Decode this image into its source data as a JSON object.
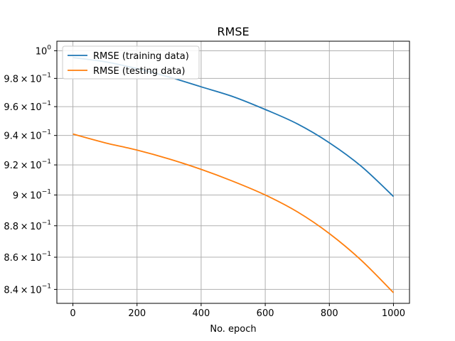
{
  "chart_data": {
    "type": "line",
    "title": "RMSE",
    "xlabel": "No. epoch",
    "ylabel": "",
    "yscale": "log",
    "grid": true,
    "legend_placement": "top-left",
    "xlim": [
      -50,
      1050
    ],
    "ylim": [
      0.8315,
      1.007
    ],
    "xticks": [
      0,
      200,
      400,
      600,
      800,
      1000
    ],
    "xtick_labels": [
      "0",
      "200",
      "400",
      "600",
      "800",
      "1000"
    ],
    "yticks": [
      {
        "value": 0.84,
        "mant": "8.4",
        "base": "10",
        "exp": "−1"
      },
      {
        "value": 0.86,
        "mant": "8.6",
        "base": "10",
        "exp": "−1"
      },
      {
        "value": 0.88,
        "mant": "8.8",
        "base": "10",
        "exp": "−1"
      },
      {
        "value": 0.9,
        "mant": "9",
        "base": "10",
        "exp": "−1"
      },
      {
        "value": 0.92,
        "mant": "9.2",
        "base": "10",
        "exp": "−1"
      },
      {
        "value": 0.94,
        "mant": "9.4",
        "base": "10",
        "exp": "−1"
      },
      {
        "value": 0.96,
        "mant": "9.6",
        "base": "10",
        "exp": "−1"
      },
      {
        "value": 0.98,
        "mant": "9.8",
        "base": "10",
        "exp": "−1"
      },
      {
        "value": 1.0,
        "mant": "",
        "base": "10",
        "exp": "0"
      }
    ],
    "series": [
      {
        "name": "RMSE (training data)",
        "color": "#1f77b4",
        "x": [
          0,
          100,
          200,
          300,
          400,
          500,
          600,
          700,
          800,
          900,
          1000
        ],
        "y": [
          0.995,
          0.992,
          0.987,
          0.981,
          0.974,
          0.967,
          0.958,
          0.948,
          0.935,
          0.919,
          0.899
        ]
      },
      {
        "name": "RMSE (testing data)",
        "color": "#ff7f0e",
        "x": [
          0,
          100,
          200,
          300,
          400,
          500,
          600,
          700,
          800,
          900,
          1000
        ],
        "y": [
          0.941,
          0.935,
          0.93,
          0.924,
          0.917,
          0.909,
          0.9,
          0.889,
          0.875,
          0.858,
          0.838
        ]
      }
    ]
  }
}
